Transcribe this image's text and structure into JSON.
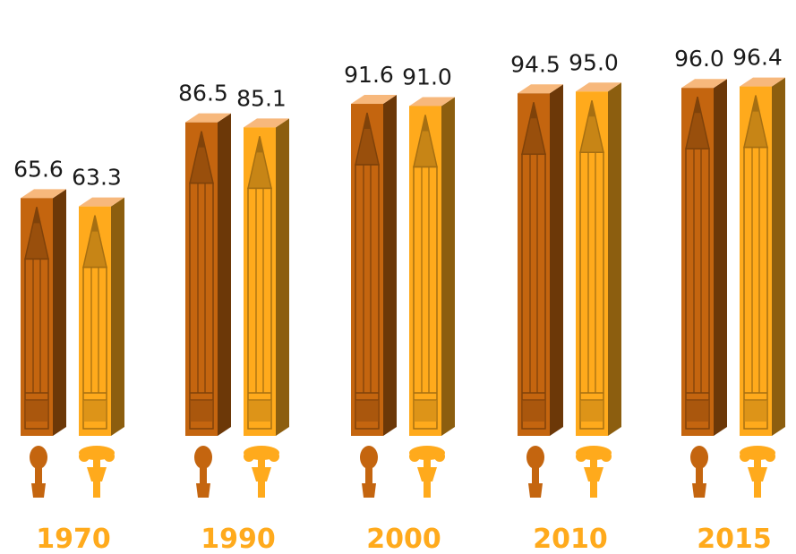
{
  "chart_data": {
    "type": "bar",
    "categories": [
      "1970",
      "1990",
      "2000",
      "2010",
      "2015"
    ],
    "series": [
      {
        "values": [
          65.6,
          86.5,
          91.6,
          94.5,
          96.0
        ],
        "color": "#c4650f",
        "icon": "boy-icon"
      },
      {
        "values": [
          63.3,
          85.1,
          91.0,
          95.0,
          96.4
        ],
        "color": "#ffaa1c",
        "icon": "girl-icon"
      }
    ],
    "value_labels": [
      [
        "65.6",
        "86.5",
        "91.6",
        "94.5",
        "96.0"
      ],
      [
        "63.3",
        "85.1",
        "91.0",
        "95.0",
        "96.4"
      ]
    ],
    "bar_style": "3d-pencil",
    "category_label_color": "#ffaa1c",
    "ylim": [
      0,
      100
    ],
    "legend": "none",
    "grid": false
  }
}
